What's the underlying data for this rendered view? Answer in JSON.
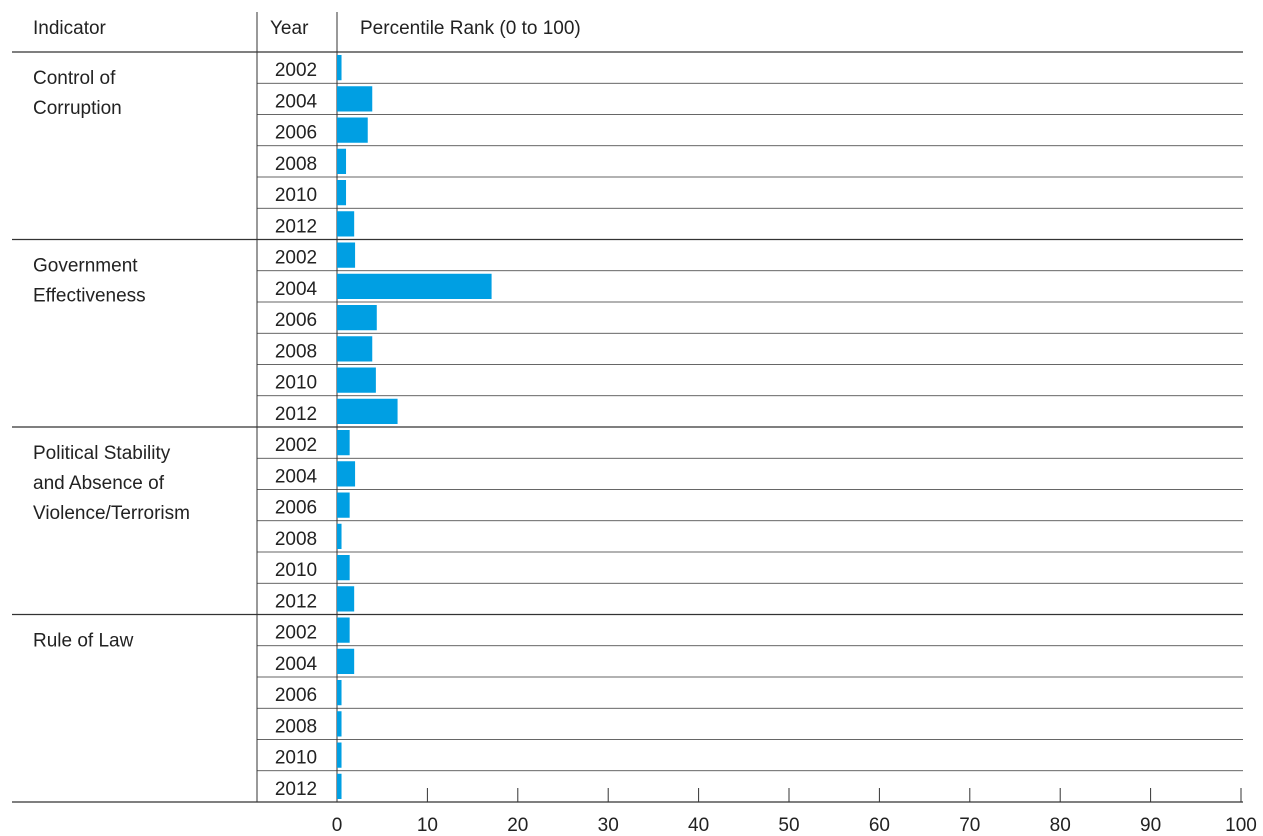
{
  "chart_data": {
    "type": "bar",
    "orientation": "horizontal",
    "headers": {
      "indicator": "Indicator",
      "year": "Year",
      "value": "Percentile Rank (0 to 100)"
    },
    "xlim": [
      0,
      100
    ],
    "x_ticks": [
      "0",
      "10",
      "20",
      "30",
      "40",
      "50",
      "60",
      "70",
      "80",
      "90",
      "100"
    ],
    "bar_color": "#009fe3",
    "groups": [
      {
        "indicator_lines": [
          "Control of",
          "Corruption"
        ],
        "rows": [
          {
            "year": "2002",
            "value": 0.5
          },
          {
            "year": "2004",
            "value": 3.9
          },
          {
            "year": "2006",
            "value": 3.4
          },
          {
            "year": "2008",
            "value": 1.0
          },
          {
            "year": "2010",
            "value": 1.0
          },
          {
            "year": "2012",
            "value": 1.9
          }
        ]
      },
      {
        "indicator_lines": [
          "Government",
          "Effectiveness"
        ],
        "rows": [
          {
            "year": "2002",
            "value": 2.0
          },
          {
            "year": "2004",
            "value": 17.1
          },
          {
            "year": "2006",
            "value": 4.4
          },
          {
            "year": "2008",
            "value": 3.9
          },
          {
            "year": "2010",
            "value": 4.3
          },
          {
            "year": "2012",
            "value": 6.7
          }
        ]
      },
      {
        "indicator_lines": [
          "Political Stability",
          "and Absence of",
          "Violence/Terrorism"
        ],
        "rows": [
          {
            "year": "2002",
            "value": 1.4
          },
          {
            "year": "2004",
            "value": 2.0
          },
          {
            "year": "2006",
            "value": 1.4
          },
          {
            "year": "2008",
            "value": 0.5
          },
          {
            "year": "2010",
            "value": 1.4
          },
          {
            "year": "2012",
            "value": 1.9
          }
        ]
      },
      {
        "indicator_lines": [
          "Rule of Law"
        ],
        "rows": [
          {
            "year": "2002",
            "value": 1.4
          },
          {
            "year": "2004",
            "value": 1.9
          },
          {
            "year": "2006",
            "value": 0.5
          },
          {
            "year": "2008",
            "value": 0.5
          },
          {
            "year": "2010",
            "value": 0.5
          },
          {
            "year": "2012",
            "value": 0.5
          }
        ]
      }
    ]
  }
}
